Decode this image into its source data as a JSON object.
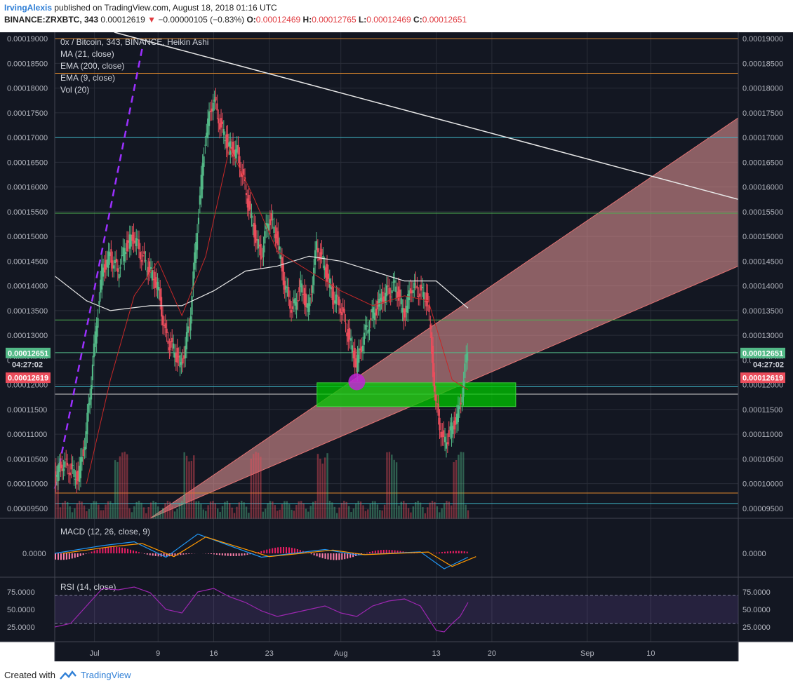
{
  "header": {
    "author": "IrvingAlexis",
    "published": "published on TradingView.com, August 18, 2018 01:16 UTC",
    "symbol": "BINANCE:ZRXBTC, 343",
    "last": "0.00012619",
    "change": "−0.00000105 (−0.83%)",
    "o_label": "O:",
    "o": "0.00012469",
    "h_label": "H:",
    "h": "0.00012765",
    "l_label": "L:",
    "l": "0.00012469",
    "c_label": "C:",
    "c": "0.00012651"
  },
  "legend": [
    "0x / Bitcoin, 343, BINANCE, Heikin Ashi",
    "MA (21, close)",
    "EMA (200, close)",
    "EMA (9, close)",
    "Vol (20)"
  ],
  "macd_label": "MACD (12, 26, close, 9)",
  "rsi_label": "RSI (14, close)",
  "price_tag_top": "0.00012651",
  "countdown": "04:27:02",
  "price_tag_bottom": "0.00012619",
  "footer": {
    "created": "Created with",
    "brand": "TradingView"
  },
  "colors": {
    "bg": "#131722",
    "up": "#53b987",
    "down": "#eb4d5c",
    "grid": "#2a2e39"
  },
  "chart_data": {
    "type": "candlestick",
    "title": "0x / Bitcoin, 343, BINANCE, Heikin Ashi",
    "price_ticks": [
      "0.00019000",
      "0.00018500",
      "0.00018000",
      "0.00017500",
      "0.00017000",
      "0.00016500",
      "0.00016000",
      "0.00015500",
      "0.00015000",
      "0.00014500",
      "0.00014000",
      "0.00013500",
      "0.00013000",
      "0.00012500",
      "0.00012000",
      "0.00011500",
      "0.00011000",
      "0.00010500",
      "0.00010000",
      "0.00009500"
    ],
    "price_range": [
      9.3e-05,
      0.0001913
    ],
    "x_ticks": [
      "Jul",
      "9",
      "16",
      "23",
      "Aug",
      "13",
      "20",
      "Sep",
      "10"
    ],
    "x_ticks_days": [
      1,
      9,
      16,
      23,
      32,
      44,
      51,
      63,
      71
    ],
    "x_range_days": [
      -4,
      82
    ],
    "macd_ticks": [
      "0.0000"
    ],
    "rsi_ticks": [
      "75.0000",
      "50.0000",
      "25.0000"
    ],
    "price_path": [
      [
        -4,
        0.000101
      ],
      [
        -3,
        0.000104
      ],
      [
        -2,
        0.000103
      ],
      [
        -1,
        0.000101
      ],
      [
        0,
        0.00011
      ],
      [
        1,
        0.000127
      ],
      [
        2,
        0.000143
      ],
      [
        3,
        0.000146
      ],
      [
        4,
        0.000143
      ],
      [
        5,
        0.000148
      ],
      [
        6,
        0.00015
      ],
      [
        7,
        0.000146
      ],
      [
        8,
        0.000143
      ],
      [
        9,
        0.00014
      ],
      [
        10,
        0.00013
      ],
      [
        11,
        0.000127
      ],
      [
        12,
        0.000124
      ],
      [
        13,
        0.000132
      ],
      [
        14,
        0.000152
      ],
      [
        15,
        0.00017
      ],
      [
        16,
        0.000178
      ],
      [
        17,
        0.000172
      ],
      [
        18,
        0.000168
      ],
      [
        19,
        0.000167
      ],
      [
        20,
        0.00016
      ],
      [
        21,
        0.000152
      ],
      [
        22,
        0.000146
      ],
      [
        23,
        0.000154
      ],
      [
        24,
        0.00015
      ],
      [
        25,
        0.00014
      ],
      [
        26,
        0.000135
      ],
      [
        27,
        0.00014
      ],
      [
        28,
        0.000135
      ],
      [
        29,
        0.000148
      ],
      [
        30,
        0.000144
      ],
      [
        31,
        0.000138
      ],
      [
        32,
        0.000136
      ],
      [
        33,
        0.00013
      ],
      [
        34,
        0.000124
      ],
      [
        35,
        0.00013
      ],
      [
        36,
        0.000134
      ],
      [
        37,
        0.000137
      ],
      [
        38,
        0.000139
      ],
      [
        39,
        0.00014
      ],
      [
        40,
        0.000134
      ],
      [
        41,
        0.00014
      ],
      [
        42,
        0.000139
      ],
      [
        43,
        0.000137
      ],
      [
        44,
        0.000116
      ],
      [
        45,
        0.000108
      ],
      [
        46,
        0.000111
      ],
      [
        47,
        0.000115
      ],
      [
        48,
        0.000127
      ]
    ],
    "ema200_path": [
      [
        -4,
        0.000142
      ],
      [
        0,
        0.000137
      ],
      [
        3,
        0.000135
      ],
      [
        8,
        0.000136
      ],
      [
        12,
        0.000136
      ],
      [
        16,
        0.000139
      ],
      [
        20,
        0.000143
      ],
      [
        24,
        0.000144
      ],
      [
        28,
        0.000146
      ],
      [
        32,
        0.000145
      ],
      [
        36,
        0.000143
      ],
      [
        40,
        0.000141
      ],
      [
        44,
        0.000141
      ],
      [
        48,
        0.0001355
      ]
    ],
    "ma21_path": [
      [
        0,
        0.0001
      ],
      [
        3,
        0.000121
      ],
      [
        6,
        0.000138
      ],
      [
        9,
        0.000145
      ],
      [
        12,
        0.000134
      ],
      [
        15,
        0.000146
      ],
      [
        18,
        0.000168
      ],
      [
        21,
        0.000158
      ],
      [
        24,
        0.000147
      ],
      [
        28,
        0.000143
      ],
      [
        32,
        0.000139
      ],
      [
        36,
        0.000136
      ],
      [
        40,
        0.000138
      ],
      [
        43,
        0.000137
      ],
      [
        46,
        0.000121
      ],
      [
        48,
        0.000119
      ]
    ],
    "horizontal_levels": [
      {
        "price": 0.00019,
        "color": "#e08a2c"
      },
      {
        "price": 0.000183,
        "color": "#e08a2c"
      },
      {
        "price": 0.00017,
        "color": "#3fb7c9"
      },
      {
        "price": 0.0001547,
        "color": "#4caf50"
      },
      {
        "price": 0.0001331,
        "color": "#4caf50"
      },
      {
        "price": 0.0001265,
        "color": "#53b987"
      },
      {
        "price": 0.0001196,
        "color": "#3fb7c9"
      },
      {
        "price": 0.0001181,
        "color": "#cfcfcf"
      },
      {
        "price": 9.81e-05,
        "color": "#e08a2c"
      },
      {
        "price": 9.6e-05,
        "color": "#3fb7c9"
      }
    ],
    "trendline": [
      [
        3.5,
        0.0001913
      ],
      [
        82,
        0.0001575
      ]
    ],
    "dashed_line": [
      [
        -4,
        9.9e-05
      ],
      [
        7,
        0.000188
      ]
    ],
    "green_box": {
      "x": [
        29,
        54
      ],
      "price": [
        0.0001156,
        0.0001204
      ]
    },
    "channel": {
      "x": [
        8,
        82
      ],
      "lower": [
        9.3e-05,
        0.000144
      ],
      "upper": [
        9.3e-05,
        0.000174
      ]
    },
    "circle": {
      "day": 34,
      "price": 0.0001206
    },
    "rsi_path": [
      [
        -4,
        25
      ],
      [
        -2,
        30
      ],
      [
        0,
        55
      ],
      [
        2,
        80
      ],
      [
        4,
        78
      ],
      [
        6,
        82
      ],
      [
        8,
        74
      ],
      [
        10,
        50
      ],
      [
        12,
        45
      ],
      [
        14,
        75
      ],
      [
        16,
        80
      ],
      [
        18,
        68
      ],
      [
        20,
        60
      ],
      [
        22,
        48
      ],
      [
        24,
        40
      ],
      [
        26,
        45
      ],
      [
        28,
        50
      ],
      [
        30,
        55
      ],
      [
        32,
        45
      ],
      [
        34,
        40
      ],
      [
        36,
        55
      ],
      [
        38,
        62
      ],
      [
        40,
        65
      ],
      [
        42,
        55
      ],
      [
        44,
        20
      ],
      [
        45,
        18
      ],
      [
        46,
        30
      ],
      [
        47,
        40
      ],
      [
        48,
        60
      ]
    ],
    "macd_path": [
      [
        -4,
        0
      ],
      [
        2,
        10
      ],
      [
        6,
        15
      ],
      [
        10,
        -5
      ],
      [
        14,
        25
      ],
      [
        18,
        10
      ],
      [
        22,
        -5
      ],
      [
        26,
        0
      ],
      [
        30,
        5
      ],
      [
        34,
        -2
      ],
      [
        38,
        0
      ],
      [
        42,
        2
      ],
      [
        45,
        -20
      ],
      [
        48,
        -5
      ]
    ]
  }
}
